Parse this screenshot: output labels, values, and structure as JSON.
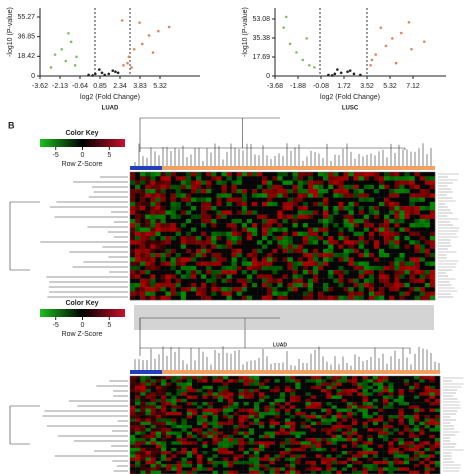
{
  "chart_data": [
    {
      "type": "scatter",
      "xlabel": "log2 (Fold Change)",
      "ylabel": "-log10 (P-value)",
      "caption": "LUAD",
      "xlim": [
        -3.62,
        8.3
      ],
      "ylim": [
        0,
        63.7
      ],
      "xticks": [
        -3.62,
        -2.13,
        -0.64,
        0.85,
        2.34,
        3.83,
        5.32
      ],
      "yticks": [
        0,
        18.42,
        36.85,
        55.27
      ],
      "series": [
        {
          "color": "#7fbf6a",
          "x": [
            -2.5,
            -2.0,
            -1.7,
            -1.3,
            -1.0,
            -2.8,
            -1.5,
            -0.9
          ],
          "values": [
            20,
            25,
            14,
            32,
            10,
            8,
            40,
            18
          ]
        },
        {
          "color": "#e8805a",
          "x": [
            2.6,
            3.0,
            3.4,
            4.0,
            4.5,
            5.2,
            3.8,
            2.9,
            4.8,
            6.0,
            3.2,
            2.5
          ],
          "values": [
            10,
            18,
            25,
            30,
            38,
            42,
            50,
            12,
            22,
            46,
            8,
            52
          ]
        },
        {
          "color": "#222222",
          "x": [
            0,
            0.5,
            1,
            1.5,
            2,
            0.8,
            1.2,
            1.8,
            2.2,
            0.3
          ],
          "values": [
            1,
            2,
            3,
            2,
            4,
            6,
            1,
            5,
            3,
            0.5
          ]
        }
      ]
    },
    {
      "type": "scatter",
      "xlabel": "log2 (Fold Change)",
      "ylabel": "-log10 (P-value)",
      "caption": "LUSC",
      "xlim": [
        -3.68,
        9.7
      ],
      "ylim": [
        0,
        63.3
      ],
      "xticks": [
        -3.68,
        -1.88,
        -0.08,
        1.72,
        3.52,
        5.32,
        7.12
      ],
      "yticks": [
        0,
        17.69,
        35.38,
        53.08
      ],
      "series": [
        {
          "color": "#7fbf6a",
          "x": [
            -3.0,
            -2.5,
            -2.0,
            -1.5,
            -1.0,
            -2.8,
            -1.2,
            -0.6
          ],
          "values": [
            45,
            30,
            22,
            15,
            10,
            55,
            35,
            8
          ]
        },
        {
          "color": "#e8805a",
          "x": [
            3.8,
            4.2,
            5.0,
            5.5,
            6.2,
            7.0,
            4.6,
            3.9,
            6.8,
            8.0,
            5.8
          ],
          "values": [
            10,
            20,
            28,
            35,
            40,
            25,
            45,
            15,
            50,
            32,
            12
          ]
        },
        {
          "color": "#222222",
          "x": [
            0.5,
            1,
            1.5,
            2,
            2.5,
            3,
            1.2,
            2.2,
            0.8
          ],
          "values": [
            1,
            2,
            3,
            4,
            2,
            1,
            6,
            5,
            0.5
          ]
        }
      ]
    }
  ],
  "panels": [
    {
      "letter": "B",
      "key_title": "Color Key",
      "key_ticks": [
        -5,
        0,
        5
      ],
      "key_label": "Row Z-Score",
      "caption": "LUAD"
    },
    {
      "key_title": "Color Key",
      "key_ticks": [
        -5,
        0,
        5
      ],
      "key_label": "Row Z-Score"
    }
  ]
}
